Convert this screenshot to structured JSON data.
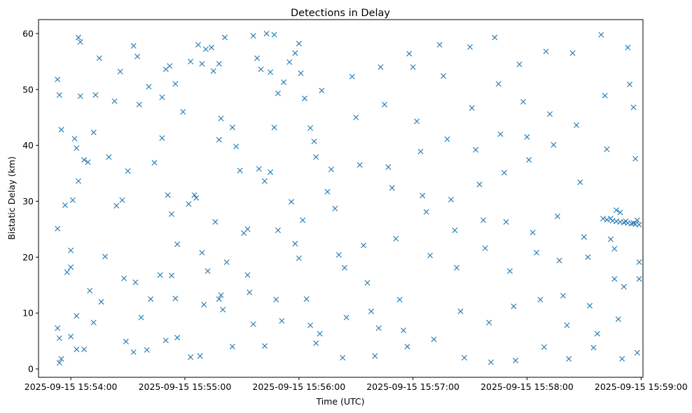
{
  "colors": {
    "marker": "#1f77b4",
    "axis": "#000000",
    "background": "#ffffff"
  },
  "chart_data": {
    "type": "scatter",
    "title": "Detections in Delay",
    "xlabel": "Time (UTC)",
    "ylabel": "Bistatic Delay (km)",
    "marker": "x",
    "grid": false,
    "legend": "none",
    "xlim": [
      "2025-09-15 15:53:43",
      "2025-09-15 15:59:01"
    ],
    "ylim": [
      -1.5,
      62.5
    ],
    "x_ticks": [
      "2025-09-15 15:54:00",
      "2025-09-15 15:55:00",
      "2025-09-15 15:56:00",
      "2025-09-15 15:57:00",
      "2025-09-15 15:58:00",
      "2025-09-15 15:59:00"
    ],
    "y_ticks": [
      0,
      10,
      20,
      30,
      40,
      50,
      60
    ],
    "seed": 20250915,
    "points_note": "",
    "series": [
      {
        "points": [
          [
            "2025-09-15 15:53:53",
            51.8
          ],
          [
            "2025-09-15 15:53:54",
            49.0
          ],
          [
            "2025-09-15 15:53:55",
            42.8
          ],
          [
            "2025-09-15 15:53:53",
            25.1
          ],
          [
            "2025-09-15 15:53:53",
            7.3
          ],
          [
            "2025-09-15 15:53:54",
            5.5
          ],
          [
            "2025-09-15 15:53:54",
            1.1
          ],
          [
            "2025-09-15 15:53:55",
            1.8
          ],
          [
            "2025-09-15 15:53:57",
            29.3
          ],
          [
            "2025-09-15 15:53:58",
            17.3
          ],
          [
            "2025-09-15 15:54:00",
            18.2
          ],
          [
            "2025-09-15 15:54:00",
            21.2
          ],
          [
            "2025-09-15 15:54:01",
            30.2
          ],
          [
            "2025-09-15 15:54:02",
            41.2
          ],
          [
            "2025-09-15 15:54:03",
            39.5
          ],
          [
            "2025-09-15 15:54:04",
            33.6
          ],
          [
            "2025-09-15 15:54:05",
            48.8
          ],
          [
            "2025-09-15 15:54:04",
            59.3
          ],
          [
            "2025-09-15 15:54:05",
            58.5
          ],
          [
            "2025-09-15 15:54:07",
            37.4
          ],
          [
            "2025-09-15 15:54:09",
            37.0
          ],
          [
            "2025-09-15 15:54:12",
            42.3
          ],
          [
            "2025-09-15 15:54:13",
            49.0
          ],
          [
            "2025-09-15 15:54:15",
            55.6
          ],
          [
            "2025-09-15 15:54:12",
            8.3
          ],
          [
            "2025-09-15 15:54:16",
            12.0
          ],
          [
            "2025-09-15 15:54:10",
            14.0
          ],
          [
            "2025-09-15 15:54:03",
            9.5
          ],
          [
            "2025-09-15 15:54:00",
            5.8
          ],
          [
            "2025-09-15 15:54:03",
            3.5
          ],
          [
            "2025-09-15 15:54:07",
            3.5
          ],
          [
            "2025-09-15 15:54:18",
            20.1
          ],
          [
            "2025-09-15 15:54:20",
            37.9
          ],
          [
            "2025-09-15 15:54:23",
            47.9
          ],
          [
            "2025-09-15 15:54:26",
            53.2
          ],
          [
            "2025-09-15 15:54:27",
            30.2
          ],
          [
            "2025-09-15 15:54:30",
            35.4
          ],
          [
            "2025-09-15 15:54:33",
            57.8
          ],
          [
            "2025-09-15 15:54:35",
            55.9
          ],
          [
            "2025-09-15 15:54:36",
            47.3
          ],
          [
            "2025-09-15 15:54:24",
            29.2
          ],
          [
            "2025-09-15 15:54:28",
            16.2
          ],
          [
            "2025-09-15 15:54:34",
            15.5
          ],
          [
            "2025-09-15 15:54:37",
            9.2
          ],
          [
            "2025-09-15 15:54:29",
            4.9
          ],
          [
            "2025-09-15 15:54:33",
            3.0
          ],
          [
            "2025-09-15 15:54:40",
            3.4
          ],
          [
            "2025-09-15 15:54:42",
            12.5
          ],
          [
            "2025-09-15 15:54:41",
            50.5
          ],
          [
            "2025-09-15 15:54:44",
            36.9
          ],
          [
            "2025-09-15 15:54:48",
            48.6
          ],
          [
            "2025-09-15 15:54:48",
            41.3
          ],
          [
            "2025-09-15 15:54:50",
            53.6
          ],
          [
            "2025-09-15 15:54:52",
            54.2
          ],
          [
            "2025-09-15 15:54:55",
            51.0
          ],
          [
            "2025-09-15 15:54:59",
            46.0
          ],
          [
            "2025-09-15 15:54:51",
            31.1
          ],
          [
            "2025-09-15 15:54:53",
            27.7
          ],
          [
            "2025-09-15 15:54:56",
            22.3
          ],
          [
            "2025-09-15 15:54:55",
            12.6
          ],
          [
            "2025-09-15 15:54:56",
            5.6
          ],
          [
            "2025-09-15 15:54:53",
            16.7
          ],
          [
            "2025-09-15 15:54:50",
            5.1
          ],
          [
            "2025-09-15 15:54:47",
            16.8
          ],
          [
            "2025-09-15 15:55:03",
            55.0
          ],
          [
            "2025-09-15 15:55:07",
            58.0
          ],
          [
            "2025-09-15 15:55:09",
            54.6
          ],
          [
            "2025-09-15 15:55:11",
            57.2
          ],
          [
            "2025-09-15 15:55:14",
            57.5
          ],
          [
            "2025-09-15 15:55:15",
            53.3
          ],
          [
            "2025-09-15 15:55:18",
            54.6
          ],
          [
            "2025-09-15 15:55:21",
            59.3
          ],
          [
            "2025-09-15 15:55:02",
            29.5
          ],
          [
            "2025-09-15 15:55:05",
            31.1
          ],
          [
            "2025-09-15 15:55:06",
            30.6
          ],
          [
            "2025-09-15 15:55:09",
            20.8
          ],
          [
            "2025-09-15 15:55:10",
            11.5
          ],
          [
            "2025-09-15 15:55:12",
            17.5
          ],
          [
            "2025-09-15 15:55:03",
            2.1
          ],
          [
            "2025-09-15 15:55:08",
            2.3
          ],
          [
            "2025-09-15 15:55:16",
            26.3
          ],
          [
            "2025-09-15 15:55:18",
            41.0
          ],
          [
            "2025-09-15 15:55:19",
            44.8
          ],
          [
            "2025-09-15 15:55:20",
            10.6
          ],
          [
            "2025-09-15 15:55:18",
            12.5
          ],
          [
            "2025-09-15 15:55:19",
            13.2
          ],
          [
            "2025-09-15 15:55:22",
            19.1
          ],
          [
            "2025-09-15 15:55:25",
            4.0
          ],
          [
            "2025-09-15 15:55:25",
            43.2
          ],
          [
            "2025-09-15 15:55:27",
            39.8
          ],
          [
            "2025-09-15 15:55:29",
            35.5
          ],
          [
            "2025-09-15 15:55:31",
            24.3
          ],
          [
            "2025-09-15 15:55:33",
            16.8
          ],
          [
            "2025-09-15 15:55:33",
            25.0
          ],
          [
            "2025-09-15 15:55:34",
            13.7
          ],
          [
            "2025-09-15 15:55:36",
            8.0
          ],
          [
            "2025-09-15 15:55:36",
            59.6
          ],
          [
            "2025-09-15 15:55:38",
            55.6
          ],
          [
            "2025-09-15 15:55:40",
            53.6
          ],
          [
            "2025-09-15 15:55:43",
            60.0
          ],
          [
            "2025-09-15 15:55:45",
            53.1
          ],
          [
            "2025-09-15 15:55:47",
            59.8
          ],
          [
            "2025-09-15 15:55:49",
            49.3
          ],
          [
            "2025-09-15 15:55:52",
            51.3
          ],
          [
            "2025-09-15 15:55:39",
            35.8
          ],
          [
            "2025-09-15 15:55:42",
            33.6
          ],
          [
            "2025-09-15 15:55:45",
            35.2
          ],
          [
            "2025-09-15 15:55:47",
            43.2
          ],
          [
            "2025-09-15 15:55:49",
            24.8
          ],
          [
            "2025-09-15 15:55:51",
            8.6
          ],
          [
            "2025-09-15 15:55:48",
            12.4
          ],
          [
            "2025-09-15 15:55:42",
            4.1
          ],
          [
            "2025-09-15 15:55:55",
            54.9
          ],
          [
            "2025-09-15 15:55:58",
            56.5
          ],
          [
            "2025-09-15 15:56:00",
            58.2
          ],
          [
            "2025-09-15 15:56:01",
            52.9
          ],
          [
            "2025-09-15 15:56:03",
            48.4
          ],
          [
            "2025-09-15 15:56:06",
            43.1
          ],
          [
            "2025-09-15 15:56:08",
            40.7
          ],
          [
            "2025-09-15 15:56:09",
            37.9
          ],
          [
            "2025-09-15 15:55:56",
            29.9
          ],
          [
            "2025-09-15 15:55:58",
            22.4
          ],
          [
            "2025-09-15 15:56:00",
            19.8
          ],
          [
            "2025-09-15 15:56:02",
            26.6
          ],
          [
            "2025-09-15 15:56:04",
            12.5
          ],
          [
            "2025-09-15 15:56:06",
            7.8
          ],
          [
            "2025-09-15 15:56:09",
            4.6
          ],
          [
            "2025-09-15 15:56:11",
            6.3
          ],
          [
            "2025-09-15 15:56:12",
            49.8
          ],
          [
            "2025-09-15 15:56:15",
            31.7
          ],
          [
            "2025-09-15 15:56:17",
            35.7
          ],
          [
            "2025-09-15 15:56:19",
            28.7
          ],
          [
            "2025-09-15 15:56:21",
            20.4
          ],
          [
            "2025-09-15 15:56:24",
            18.1
          ],
          [
            "2025-09-15 15:56:23",
            2.0
          ],
          [
            "2025-09-15 15:56:25",
            9.2
          ],
          [
            "2025-09-15 15:56:28",
            52.3
          ],
          [
            "2025-09-15 15:56:30",
            45.0
          ],
          [
            "2025-09-15 15:56:32",
            36.5
          ],
          [
            "2025-09-15 15:56:34",
            22.1
          ],
          [
            "2025-09-15 15:56:36",
            15.4
          ],
          [
            "2025-09-15 15:56:38",
            10.3
          ],
          [
            "2025-09-15 15:56:40",
            2.3
          ],
          [
            "2025-09-15 15:56:42",
            7.3
          ],
          [
            "2025-09-15 15:56:43",
            54.0
          ],
          [
            "2025-09-15 15:56:45",
            47.3
          ],
          [
            "2025-09-15 15:56:47",
            36.1
          ],
          [
            "2025-09-15 15:56:49",
            32.4
          ],
          [
            "2025-09-15 15:56:51",
            23.3
          ],
          [
            "2025-09-15 15:56:53",
            12.4
          ],
          [
            "2025-09-15 15:56:55",
            6.9
          ],
          [
            "2025-09-15 15:56:57",
            4.0
          ],
          [
            "2025-09-15 15:56:58",
            56.4
          ],
          [
            "2025-09-15 15:57:00",
            54.0
          ],
          [
            "2025-09-15 15:57:02",
            44.3
          ],
          [
            "2025-09-15 15:57:04",
            38.9
          ],
          [
            "2025-09-15 15:57:05",
            31.0
          ],
          [
            "2025-09-15 15:57:07",
            28.1
          ],
          [
            "2025-09-15 15:57:09",
            20.3
          ],
          [
            "2025-09-15 15:57:11",
            5.3
          ],
          [
            "2025-09-15 15:57:14",
            58.0
          ],
          [
            "2025-09-15 15:57:16",
            52.4
          ],
          [
            "2025-09-15 15:57:18",
            41.1
          ],
          [
            "2025-09-15 15:57:20",
            30.3
          ],
          [
            "2025-09-15 15:57:22",
            24.8
          ],
          [
            "2025-09-15 15:57:23",
            18.1
          ],
          [
            "2025-09-15 15:57:25",
            10.3
          ],
          [
            "2025-09-15 15:57:27",
            2.0
          ],
          [
            "2025-09-15 15:57:30",
            57.6
          ],
          [
            "2025-09-15 15:57:31",
            46.7
          ],
          [
            "2025-09-15 15:57:33",
            39.2
          ],
          [
            "2025-09-15 15:57:35",
            33.0
          ],
          [
            "2025-09-15 15:57:37",
            26.6
          ],
          [
            "2025-09-15 15:57:38",
            21.6
          ],
          [
            "2025-09-15 15:57:40",
            8.3
          ],
          [
            "2025-09-15 15:57:41",
            1.2
          ],
          [
            "2025-09-15 15:57:43",
            59.3
          ],
          [
            "2025-09-15 15:57:45",
            51.0
          ],
          [
            "2025-09-15 15:57:46",
            42.0
          ],
          [
            "2025-09-15 15:57:48",
            35.1
          ],
          [
            "2025-09-15 15:57:49",
            26.3
          ],
          [
            "2025-09-15 15:57:51",
            17.5
          ],
          [
            "2025-09-15 15:57:53",
            11.2
          ],
          [
            "2025-09-15 15:57:54",
            1.5
          ],
          [
            "2025-09-15 15:57:56",
            54.5
          ],
          [
            "2025-09-15 15:57:58",
            47.8
          ],
          [
            "2025-09-15 15:58:00",
            41.5
          ],
          [
            "2025-09-15 15:58:01",
            37.4
          ],
          [
            "2025-09-15 15:58:03",
            24.4
          ],
          [
            "2025-09-15 15:58:05",
            20.8
          ],
          [
            "2025-09-15 15:58:07",
            12.4
          ],
          [
            "2025-09-15 15:58:09",
            3.9
          ],
          [
            "2025-09-15 15:58:10",
            56.8
          ],
          [
            "2025-09-15 15:58:12",
            45.6
          ],
          [
            "2025-09-15 15:58:14",
            40.1
          ],
          [
            "2025-09-15 15:58:16",
            27.3
          ],
          [
            "2025-09-15 15:58:17",
            19.4
          ],
          [
            "2025-09-15 15:58:19",
            13.1
          ],
          [
            "2025-09-15 15:58:21",
            7.8
          ],
          [
            "2025-09-15 15:58:22",
            1.8
          ],
          [
            "2025-09-15 15:58:24",
            56.5
          ],
          [
            "2025-09-15 15:58:26",
            43.6
          ],
          [
            "2025-09-15 15:58:28",
            33.4
          ],
          [
            "2025-09-15 15:58:30",
            23.6
          ],
          [
            "2025-09-15 15:58:32",
            20.0
          ],
          [
            "2025-09-15 15:58:33",
            11.3
          ],
          [
            "2025-09-15 15:58:35",
            3.8
          ],
          [
            "2025-09-15 15:58:37",
            6.3
          ],
          [
            "2025-09-15 15:58:39",
            59.8
          ],
          [
            "2025-09-15 15:58:41",
            48.9
          ],
          [
            "2025-09-15 15:58:42",
            39.3
          ],
          [
            "2025-09-15 15:58:44",
            26.9
          ],
          [
            "2025-09-15 15:58:46",
            16.1
          ],
          [
            "2025-09-15 15:58:48",
            8.9
          ],
          [
            "2025-09-15 15:58:50",
            1.8
          ],
          [
            "2025-09-15 15:58:51",
            14.7
          ],
          [
            "2025-09-15 15:58:53",
            57.5
          ],
          [
            "2025-09-15 15:58:54",
            50.9
          ],
          [
            "2025-09-15 15:58:56",
            46.8
          ],
          [
            "2025-09-15 15:58:57",
            37.6
          ],
          [
            "2025-09-15 15:58:58",
            26.6
          ],
          [
            "2025-09-15 15:58:59",
            16.1
          ],
          [
            "2025-09-15 15:58:59",
            19.1
          ],
          [
            "2025-09-15 15:58:58",
            2.9
          ],
          [
            "2025-09-15 15:58:40",
            26.9
          ],
          [
            "2025-09-15 15:58:42",
            26.7
          ],
          [
            "2025-09-15 15:58:45",
            26.5
          ],
          [
            "2025-09-15 15:58:47",
            26.4
          ],
          [
            "2025-09-15 15:58:49",
            26.3
          ],
          [
            "2025-09-15 15:58:51",
            26.2
          ],
          [
            "2025-09-15 15:58:53",
            26.1
          ],
          [
            "2025-09-15 15:58:55",
            26.0
          ],
          [
            "2025-09-15 15:58:57",
            25.9
          ],
          [
            "2025-09-15 15:58:59",
            25.8
          ],
          [
            "2025-09-15 15:58:47",
            28.4
          ],
          [
            "2025-09-15 15:58:49",
            28.0
          ],
          [
            "2025-09-15 15:58:44",
            23.2
          ],
          [
            "2025-09-15 15:58:46",
            21.5
          ],
          [
            "2025-09-15 15:58:52",
            26.4
          ],
          [
            "2025-09-15 15:58:56",
            26.1
          ]
        ]
      }
    ]
  }
}
